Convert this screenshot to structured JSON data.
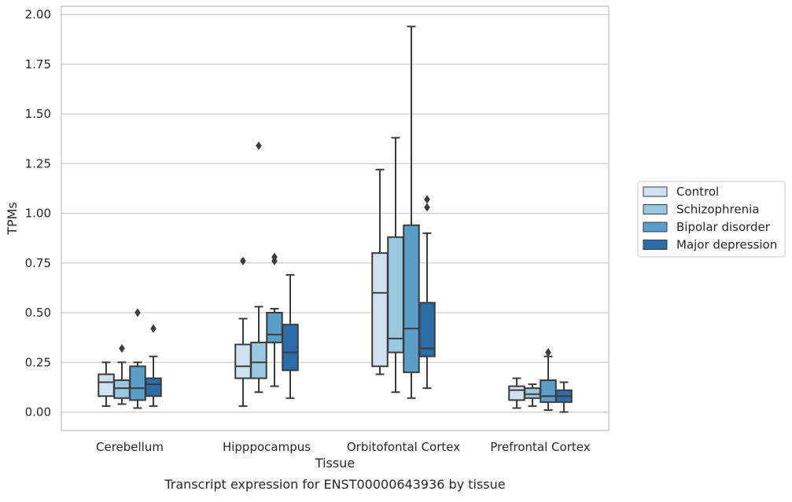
{
  "chart_data": {
    "type": "box",
    "xlabel": "Tissue",
    "ylabel": "TPMs",
    "caption": "Transcript expression for ENST00000643936 by tissue",
    "ylim": [
      -0.1,
      2.03
    ],
    "yticks": [
      "0.00",
      "0.25",
      "0.50",
      "0.75",
      "1.00",
      "1.25",
      "1.50",
      "1.75",
      "2.00"
    ],
    "grid": "horizontal",
    "legend_position": "right",
    "categories": [
      "Cerebellum",
      "Hipppocampus",
      "Orbitofontal Cortex",
      "Prefrontal Cortex"
    ],
    "series": [
      {
        "name": "Control",
        "color": "#d0e1f2",
        "boxes": [
          {
            "whislo": 0.03,
            "q1": 0.08,
            "med": 0.15,
            "q3": 0.19,
            "whishi": 0.25,
            "fliers": []
          },
          {
            "whislo": 0.03,
            "q1": 0.17,
            "med": 0.23,
            "q3": 0.34,
            "whishi": 0.47,
            "fliers": [
              0.76
            ]
          },
          {
            "whislo": 0.19,
            "q1": 0.23,
            "med": 0.6,
            "q3": 0.8,
            "whishi": 1.22,
            "fliers": []
          },
          {
            "whislo": 0.02,
            "q1": 0.06,
            "med": 0.11,
            "q3": 0.13,
            "whishi": 0.17,
            "fliers": []
          }
        ]
      },
      {
        "name": "Schizophrenia",
        "color": "#9ac8e0",
        "boxes": [
          {
            "whislo": 0.04,
            "q1": 0.07,
            "med": 0.12,
            "q3": 0.16,
            "whishi": 0.25,
            "fliers": [
              0.32
            ]
          },
          {
            "whislo": 0.1,
            "q1": 0.17,
            "med": 0.25,
            "q3": 0.35,
            "whishi": 0.53,
            "fliers": [
              1.34
            ]
          },
          {
            "whislo": 0.1,
            "q1": 0.3,
            "med": 0.37,
            "q3": 0.88,
            "whishi": 1.38,
            "fliers": []
          },
          {
            "whislo": 0.03,
            "q1": 0.07,
            "med": 0.09,
            "q3": 0.12,
            "whishi": 0.14,
            "fliers": []
          }
        ]
      },
      {
        "name": "Bipolar disorder",
        "color": "#5a9ec9",
        "boxes": [
          {
            "whislo": 0.02,
            "q1": 0.06,
            "med": 0.12,
            "q3": 0.23,
            "whishi": 0.25,
            "fliers": [
              0.5
            ]
          },
          {
            "whislo": 0.13,
            "q1": 0.35,
            "med": 0.39,
            "q3": 0.5,
            "whishi": 0.52,
            "fliers": [
              0.76,
              0.78
            ]
          },
          {
            "whislo": 0.07,
            "q1": 0.2,
            "med": 0.42,
            "q3": 0.94,
            "whishi": 1.94,
            "fliers": []
          },
          {
            "whislo": 0.01,
            "q1": 0.05,
            "med": 0.08,
            "q3": 0.16,
            "whishi": 0.28,
            "fliers": [
              0.3
            ]
          }
        ]
      },
      {
        "name": "Major depression",
        "color": "#2b6ca9",
        "boxes": [
          {
            "whislo": 0.03,
            "q1": 0.08,
            "med": 0.14,
            "q3": 0.17,
            "whishi": 0.28,
            "fliers": [
              0.42
            ]
          },
          {
            "whislo": 0.07,
            "q1": 0.21,
            "med": 0.3,
            "q3": 0.44,
            "whishi": 0.69,
            "fliers": []
          },
          {
            "whislo": 0.12,
            "q1": 0.28,
            "med": 0.32,
            "q3": 0.55,
            "whishi": 0.9,
            "fliers": [
              1.03,
              1.07
            ]
          },
          {
            "whislo": 0.0,
            "q1": 0.05,
            "med": 0.08,
            "q3": 0.11,
            "whishi": 0.15,
            "fliers": []
          }
        ]
      }
    ]
  }
}
